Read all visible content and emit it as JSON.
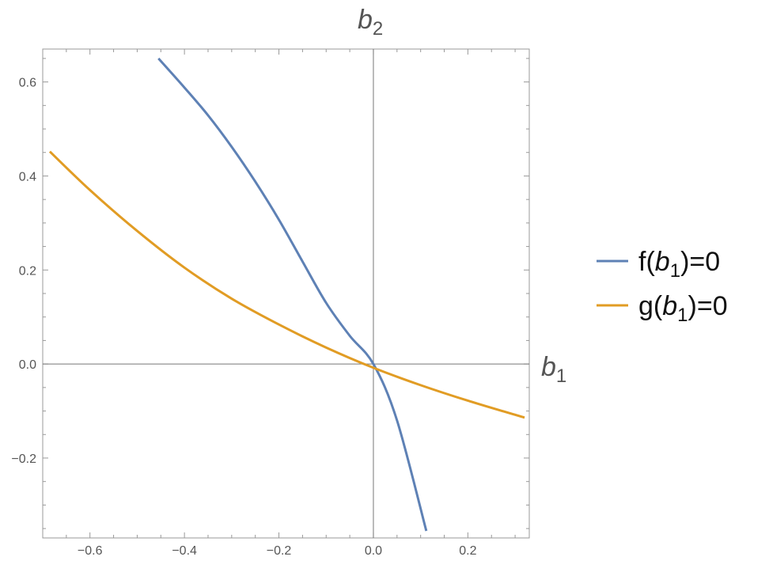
{
  "chart_data": {
    "type": "line",
    "xlabel": {
      "base": "b",
      "sub": "1"
    },
    "ylabel": {
      "base": "b",
      "sub": "2"
    },
    "xlim": [
      -0.7,
      0.33
    ],
    "ylim": [
      -0.37,
      0.67
    ],
    "xticks": [
      -0.6,
      -0.4,
      -0.2,
      0.0,
      0.2
    ],
    "xtick_labels": [
      "−0.6",
      "−0.4",
      "−0.2",
      "0.0",
      "0.2"
    ],
    "yticks": [
      -0.2,
      0.0,
      0.2,
      0.4,
      0.6
    ],
    "ytick_labels": [
      "−0.2",
      "0.0",
      "0.2",
      "0.4",
      "0.6"
    ],
    "grid": false,
    "legend_position": "right",
    "series": [
      {
        "label_parts": [
          "f(",
          "b",
          "1",
          ")=0"
        ],
        "color": "#5e81b5",
        "x": [
          -0.455,
          -0.4,
          -0.35,
          -0.3,
          -0.25,
          -0.2,
          -0.15,
          -0.1,
          -0.05,
          0.0,
          0.05,
          0.112
        ],
        "y": [
          0.65,
          0.588,
          0.529,
          0.462,
          0.388,
          0.307,
          0.218,
          0.13,
          0.06,
          0.0,
          -0.12,
          -0.355
        ]
      },
      {
        "label_parts": [
          "g(",
          "b",
          "1",
          ")=0"
        ],
        "color": "#e19c24",
        "x": [
          -0.685,
          -0.6,
          -0.5,
          -0.4,
          -0.3,
          -0.2,
          -0.1,
          0.0,
          0.1,
          0.2,
          0.32
        ],
        "y": [
          0.452,
          0.37,
          0.283,
          0.205,
          0.139,
          0.084,
          0.035,
          -0.008,
          -0.045,
          -0.078,
          -0.114
        ]
      }
    ]
  }
}
